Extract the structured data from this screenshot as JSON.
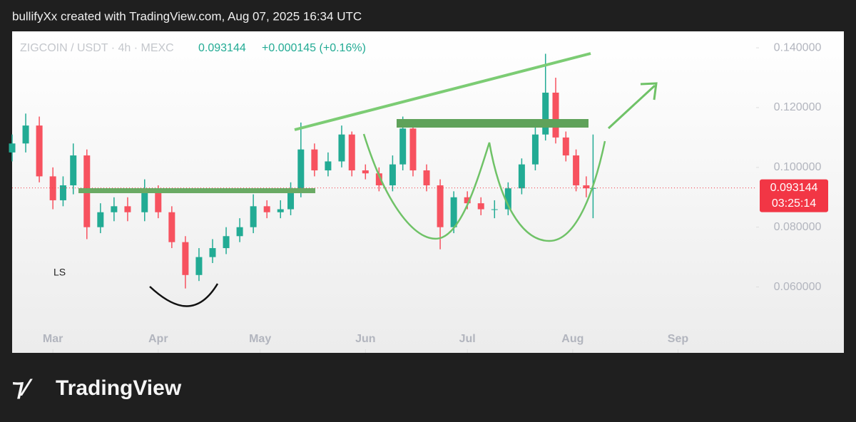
{
  "header": {
    "title": "bullifyXx created with TradingView.com, Aug 07, 2025 16:34 UTC"
  },
  "chart_data": {
    "type": "candlestick",
    "symbol": "ZIGCOIN / USDT · 4h · MEXC",
    "last_price": 0.093144,
    "change_label": "+0.000145 (+0.16%)",
    "countdown": "03:25:14",
    "annotation": "LS",
    "up_color": "#22ab94",
    "down_color": "#f7525f",
    "x": [
      48,
      52,
      56,
      60,
      63,
      66,
      70,
      74,
      78,
      82,
      87,
      91,
      95,
      99,
      103,
      107,
      111,
      115,
      119,
      123,
      127,
      130,
      133,
      137,
      141,
      145,
      148,
      152,
      156,
      160,
      163,
      166,
      170,
      174,
      178,
      182,
      186,
      190,
      194,
      198,
      202,
      205,
      208,
      211,
      214,
      217,
      219
    ],
    "open": [
      0.105,
      0.108,
      0.114,
      0.097,
      0.089,
      0.094,
      0.104,
      0.08,
      0.085,
      0.087,
      0.085,
      0.092,
      0.085,
      0.075,
      0.064,
      0.07,
      0.073,
      0.077,
      0.08,
      0.087,
      0.085,
      0.086,
      0.092,
      0.106,
      0.099,
      0.102,
      0.111,
      0.099,
      0.098,
      0.094,
      0.101,
      0.113,
      0.099,
      0.094,
      0.08,
      0.09,
      0.088,
      0.086,
      0.086,
      0.093,
      0.101,
      0.111,
      0.125,
      0.11,
      0.104,
      0.094,
      0.093
    ],
    "high": [
      0.111,
      0.118,
      0.117,
      0.1,
      0.097,
      0.108,
      0.106,
      0.088,
      0.09,
      0.09,
      0.096,
      0.094,
      0.087,
      0.077,
      0.073,
      0.076,
      0.08,
      0.083,
      0.091,
      0.089,
      0.089,
      0.095,
      0.115,
      0.108,
      0.105,
      0.114,
      0.112,
      0.101,
      0.1,
      0.104,
      0.117,
      0.114,
      0.101,
      0.096,
      0.092,
      0.092,
      0.09,
      0.089,
      0.095,
      0.103,
      0.114,
      0.138,
      0.13,
      0.112,
      0.106,
      0.097,
      0.111
    ],
    "low": [
      0.102,
      0.105,
      0.095,
      0.086,
      0.087,
      0.091,
      0.076,
      0.078,
      0.082,
      0.082,
      0.082,
      0.083,
      0.073,
      0.0595,
      0.062,
      0.068,
      0.071,
      0.075,
      0.078,
      0.083,
      0.083,
      0.084,
      0.09,
      0.097,
      0.097,
      0.1,
      0.097,
      0.096,
      0.092,
      0.092,
      0.099,
      0.097,
      0.092,
      0.0726,
      0.078,
      0.086,
      0.084,
      0.083,
      0.084,
      0.091,
      0.099,
      0.109,
      0.108,
      0.102,
      0.092,
      0.09,
      0.083
    ],
    "close": [
      0.108,
      0.114,
      0.097,
      0.089,
      0.094,
      0.104,
      0.08,
      0.085,
      0.087,
      0.085,
      0.092,
      0.085,
      0.075,
      0.064,
      0.07,
      0.073,
      0.077,
      0.08,
      0.087,
      0.085,
      0.086,
      0.092,
      0.106,
      0.099,
      0.102,
      0.111,
      0.099,
      0.098,
      0.094,
      0.101,
      0.113,
      0.099,
      0.094,
      0.08,
      0.09,
      0.088,
      0.086,
      0.086,
      0.093,
      0.101,
      0.111,
      0.125,
      0.11,
      0.104,
      0.094,
      0.093,
      0.0931
    ],
    "xlim": [
      48,
      267
    ],
    "xticks": [
      {
        "value": 60,
        "label": "Mar"
      },
      {
        "value": 91,
        "label": "Apr"
      },
      {
        "value": 121,
        "label": "May"
      },
      {
        "value": 152,
        "label": "Jun"
      },
      {
        "value": 182,
        "label": "Jul"
      },
      {
        "value": 213,
        "label": "Aug"
      },
      {
        "value": 244,
        "label": "Sep"
      }
    ],
    "ylim": [
      0.0475,
      0.1455
    ],
    "yticks": [
      {
        "value": 0.06,
        "label": "0.060000"
      },
      {
        "value": 0.08,
        "label": "0.080000"
      },
      {
        "value": 0.1,
        "label": "0.100000"
      },
      {
        "value": 0.12,
        "label": "0.120000"
      },
      {
        "value": 0.14,
        "label": "0.140000"
      }
    ]
  },
  "footer": {
    "brand": "TradingView"
  }
}
